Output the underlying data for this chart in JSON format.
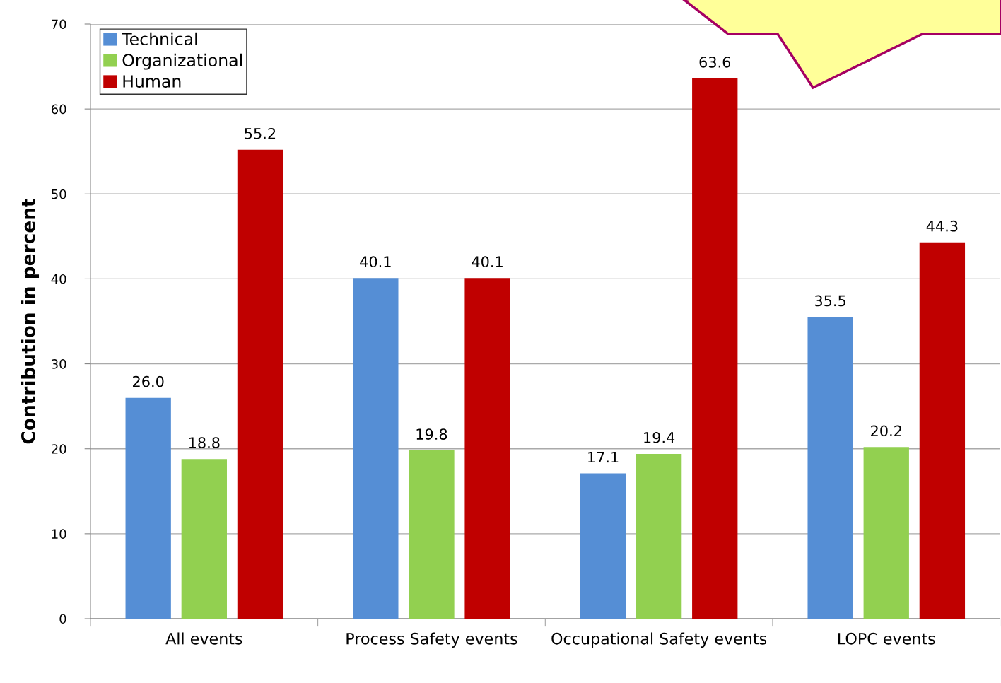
{
  "chart_data": {
    "type": "bar",
    "ylabel": "Contribution in percent",
    "categories": [
      "All events",
      "Process Safety events",
      "Occupational Safety events",
      "LOPC events"
    ],
    "series": [
      {
        "name": "Technical",
        "color": "#558ed5",
        "values": [
          26.0,
          40.1,
          17.1,
          35.5
        ],
        "value_labels": [
          "26.0",
          "40.1",
          "17.1",
          "35.5"
        ]
      },
      {
        "name": "Organizational",
        "color": "#92d050",
        "values": [
          18.8,
          19.8,
          19.4,
          20.2
        ],
        "value_labels": [
          "18.8",
          "19.8",
          "19.4",
          "20.2"
        ]
      },
      {
        "name": "Human",
        "color": "#c00000",
        "values": [
          55.2,
          40.1,
          63.6,
          44.3
        ],
        "value_labels": [
          "55.2",
          "40.1",
          "63.6",
          "44.3"
        ]
      }
    ],
    "ylim": [
      0,
      70
    ],
    "yticks": [
      0,
      10,
      20,
      30,
      40,
      50,
      60,
      70
    ],
    "grid": "y",
    "legend": "top left"
  }
}
